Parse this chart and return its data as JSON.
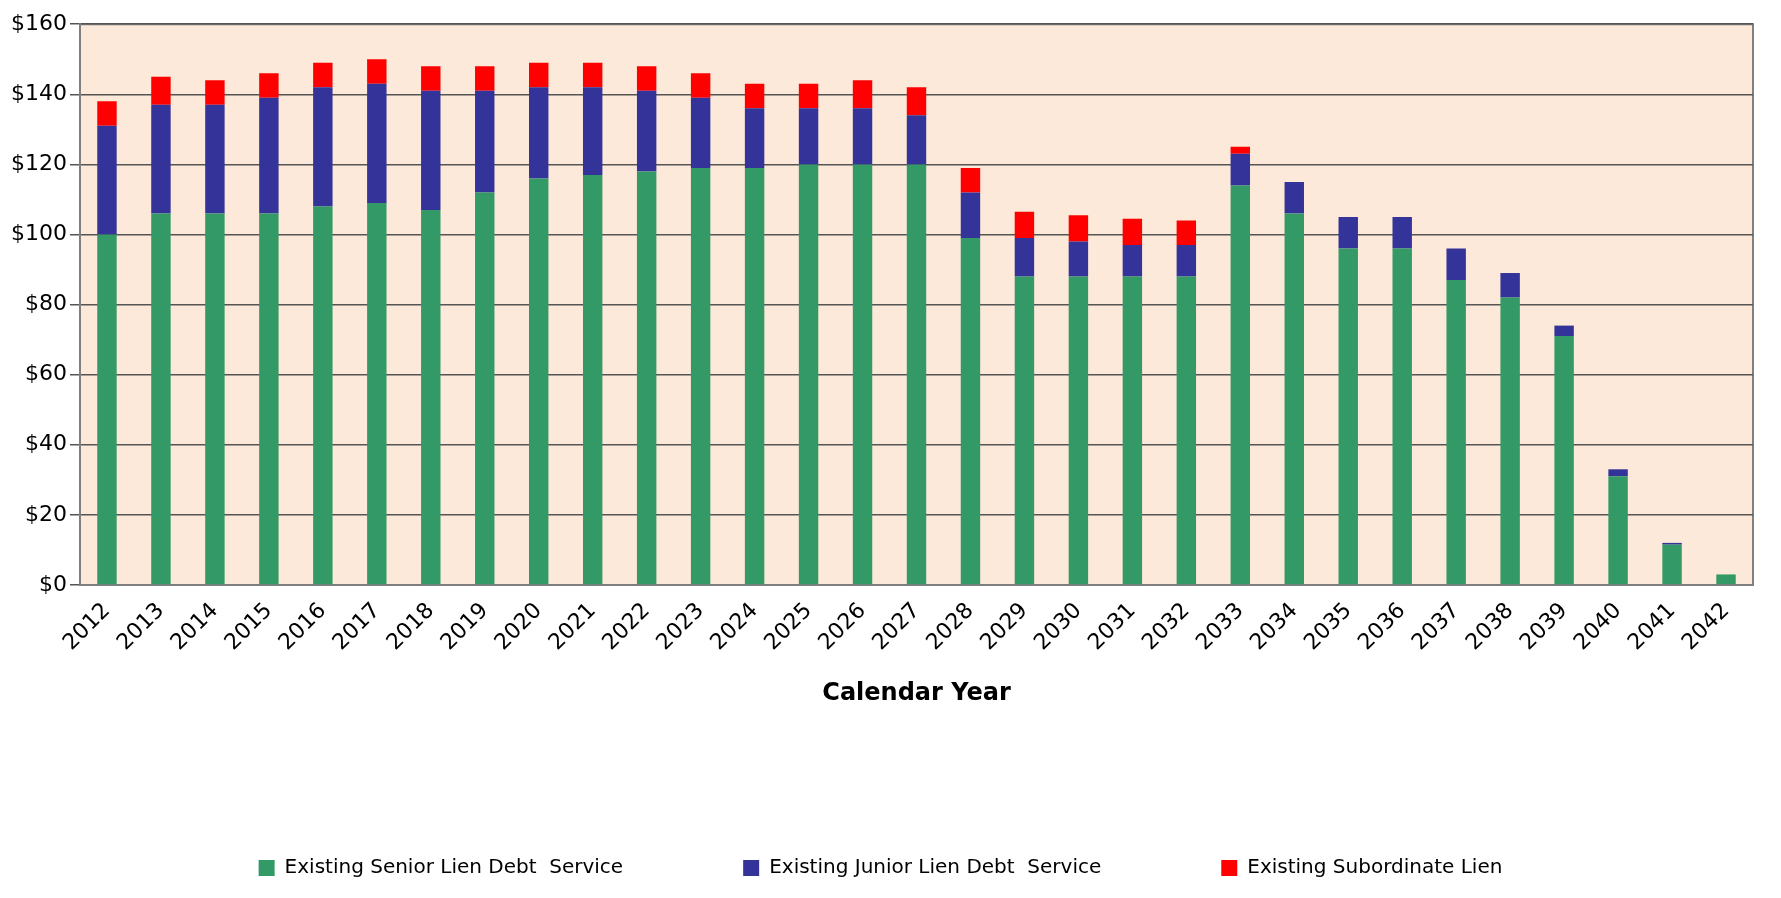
{
  "chart_data": {
    "type": "bar",
    "xlabel": "Calendar Year",
    "stacked": true,
    "grid": "y",
    "legend": "bottom",
    "categories": [
      "2012",
      "2013",
      "2014",
      "2015",
      "2016",
      "2017",
      "2018",
      "2019",
      "2020",
      "2021",
      "2022",
      "2023",
      "2024",
      "2025",
      "2026",
      "2027",
      "2028",
      "2029",
      "2030",
      "2031",
      "2032",
      "2033",
      "2034",
      "2035",
      "2036",
      "2037",
      "2038",
      "2039",
      "2040",
      "2041",
      "2042"
    ],
    "ylim": [
      0,
      160
    ],
    "yticks": [
      {
        "value": 0,
        "label": "$0"
      },
      {
        "value": 20,
        "label": "$20"
      },
      {
        "value": 40,
        "label": "$40"
      },
      {
        "value": 60,
        "label": "$60"
      },
      {
        "value": 80,
        "label": "$80"
      },
      {
        "value": 100,
        "label": "$100"
      },
      {
        "value": 120,
        "label": "$120"
      },
      {
        "value": 140,
        "label": "$140"
      },
      {
        "value": 160,
        "label": "$160"
      }
    ],
    "series": [
      {
        "name": "Existing Senior Lien Debt  Service",
        "color": "#339966",
        "values": [
          100,
          106,
          106,
          106,
          108,
          109,
          107,
          112,
          116,
          117,
          118,
          119,
          119,
          120,
          120,
          120,
          99,
          88,
          88,
          88,
          88,
          114,
          106,
          96,
          96,
          87,
          82,
          71,
          31,
          11.5,
          3
        ]
      },
      {
        "name": "Existing Junior Lien Debt  Service",
        "color": "#333399",
        "values": [
          31,
          31,
          31,
          33,
          34,
          34,
          34,
          29,
          26,
          25,
          23,
          20,
          17,
          16,
          16,
          14,
          13,
          11,
          10,
          9,
          9,
          9,
          9,
          9,
          9,
          9,
          7,
          3,
          2,
          0.5,
          0
        ]
      },
      {
        "name": "Existing Subordinate Lien",
        "color": "#ff0000",
        "values": [
          7,
          8,
          7,
          7,
          7,
          7,
          7,
          7,
          7,
          7,
          7,
          7,
          7,
          7,
          8,
          8,
          7,
          7.5,
          7.5,
          7.5,
          7,
          2,
          0,
          0,
          0,
          0,
          0,
          0,
          0,
          0,
          0
        ]
      }
    ]
  }
}
